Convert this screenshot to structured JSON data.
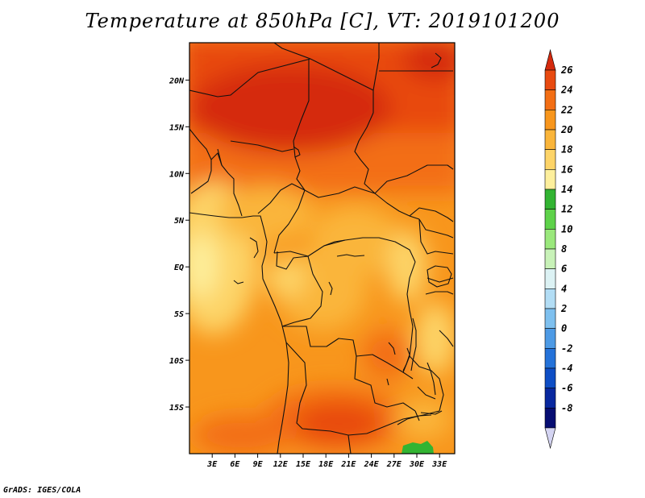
{
  "title": "Temperature at 850hPa [C], VT: 2019101200",
  "credit": "GrADS: IGES/COLA",
  "map": {
    "region": "Central Africa",
    "lon_range": [
      0,
      35
    ],
    "lat_range": [
      -20,
      24
    ],
    "x_ticks": [
      "3E",
      "6E",
      "9E",
      "12E",
      "15E",
      "18E",
      "21E",
      "24E",
      "27E",
      "30E",
      "33E"
    ],
    "y_ticks": [
      "20N",
      "15N",
      "10N",
      "5N",
      "EQ",
      "5S",
      "10S",
      "15S"
    ]
  },
  "colorbar": {
    "levels": [
      "26",
      "24",
      "22",
      "20",
      "18",
      "16",
      "14",
      "12",
      "10",
      "8",
      "6",
      "4",
      "2",
      "0",
      "-2",
      "-4",
      "-6",
      "-8"
    ],
    "colors": [
      "#d52a0e",
      "#e84a10",
      "#f36e14",
      "#f8961c",
      "#fab53a",
      "#fdd468",
      "#fdef9c",
      "#32b432",
      "#5ed24a",
      "#9ae87c",
      "#c8f2b8",
      "#dcf2f4",
      "#b2ddf5",
      "#7ec0ef",
      "#4d9ae5",
      "#2472d9",
      "#0e4ec5",
      "#08289f",
      "#060d72",
      "#d4d4f2"
    ]
  }
}
